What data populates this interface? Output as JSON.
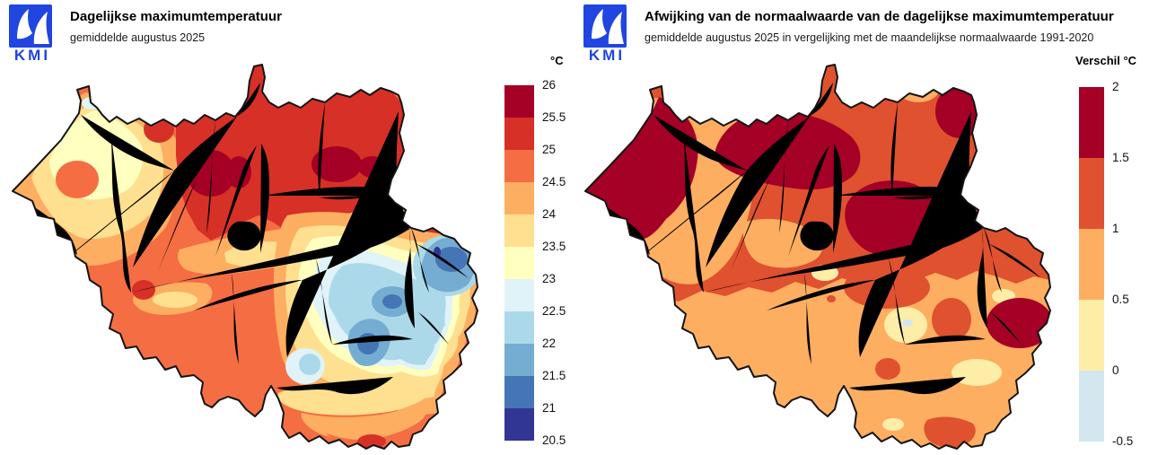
{
  "style": {
    "river": "#1414dc",
    "province": "#bdbdbd",
    "outline": "#141414",
    "logo_blue": "#2145e0",
    "title_color": "#000000",
    "subtitle_color": "#1a1a1a"
  },
  "logo": {
    "text": "KMI"
  },
  "left": {
    "title": "Dagelijkse maximumtemperatuur",
    "subtitle": "gemiddelde augustus 2025",
    "legend": {
      "header": "°C",
      "labels": [
        "26",
        "25.5",
        "25",
        "24.5",
        "24",
        "23.5",
        "23",
        "22.5",
        "22",
        "21.5",
        "21",
        "20.5"
      ],
      "colors": [
        "#a50026",
        "#d73027",
        "#f46d43",
        "#fdae61",
        "#fee090",
        "#ffffbf",
        "#e0f3f8",
        "#abd9e9",
        "#74add1",
        "#4575b4",
        "#313695"
      ]
    }
  },
  "right": {
    "title": "Afwijking van de normaalwaarde van de dagelijkse maximumtemperatuur",
    "subtitle": "gemiddelde augustus 2025 in vergelijking met de maandelijkse normaalwaarde 1991-2020",
    "legend": {
      "header": "Verschil °C",
      "labels": [
        "2",
        "1.5",
        "1",
        "0.5",
        "0",
        "-0.5"
      ],
      "colors": [
        "#a50026",
        "#df512f",
        "#fdae61",
        "#fdeda6",
        "#d3e7ee"
      ]
    }
  },
  "chart_data": [
    {
      "type": "choropleth-map",
      "region": "Belgium",
      "title": "Dagelijkse maximumtemperatuur",
      "subtitle": "gemiddelde augustus 2025",
      "unit": "°C",
      "scale_boundaries": [
        26,
        25.5,
        25,
        24.5,
        24,
        23.5,
        23,
        22.5,
        22,
        21.5,
        21,
        20.5
      ],
      "scale_colors": [
        "#a50026",
        "#d73027",
        "#f46d43",
        "#fdae61",
        "#fee090",
        "#ffffbf",
        "#e0f3f8",
        "#abd9e9",
        "#74add1",
        "#4575b4",
        "#313695"
      ],
      "legend_position": "right",
      "pattern": "Hoogste waarden 25.5-26 °C in het centrum en noorden; westkust 23-24 °C; laagste waarden 20.5-22 °C in de Hoge Venen en Ardennen; zuidpunt opnieuw 24-25 °C."
    },
    {
      "type": "choropleth-map",
      "region": "Belgium",
      "title": "Afwijking van de normaalwaarde van de dagelijkse maximumtemperatuur",
      "subtitle": "gemiddelde augustus 2025 in vergelijking met de maandelijkse normaalwaarde 1991-2020",
      "unit": "°C",
      "scale_boundaries": [
        2,
        1.5,
        1,
        0.5,
        0,
        -0.5
      ],
      "scale_colors": [
        "#a50026",
        "#df512f",
        "#fdae61",
        "#fdeda6",
        "#d3e7ee"
      ],
      "legend_position": "right",
      "pattern": "Afwijkingen overwegend +0.5 tot +2 °C; grootste anomalieën +1.5 tot +2 °C aan de westkust, rond Antwerpen en centraal; kleine zones rond 0 °C in de Ardennen."
    }
  ]
}
